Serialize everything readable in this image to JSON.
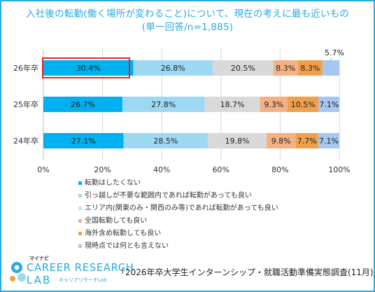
{
  "title_line1": "入社後の転勤(働く場所が変わること)について、現在の考えに最も近いもの",
  "title_line2": "(単一回答/n=1,885)",
  "logo": {
    "brand_small": "マイナビ",
    "brand_line1": "CAREER RESEARCH",
    "brand_line2": "LAB",
    "brand_sub": "キャリアリサーチLab"
  },
  "source": "「2026年卒大学生インターンシップ・就職活動準備実態調査(11月)」",
  "colors": {
    "s1": "#00B0F0",
    "s2": "#9DD9F3",
    "s3": "#D9D9D9",
    "s4": "#F4B183",
    "s5": "#F0A04B",
    "s6": "#A6C8EF",
    "grid": "#D9D9D9",
    "text": "#333333",
    "highlight": "#E4252B"
  },
  "chart_data": {
    "type": "bar",
    "orientation": "horizontal",
    "stacked": true,
    "categories": [
      "26年卒",
      "25年卒",
      "24年卒"
    ],
    "xlim": [
      0,
      100
    ],
    "xticks": [
      "0%",
      "20%",
      "40%",
      "60%",
      "80%",
      "100%"
    ],
    "grid": true,
    "legend_position": "bottom",
    "highlight": {
      "category": "26年卒",
      "series": "転勤はしたくない"
    },
    "series": [
      {
        "name": "転勤はしたくない",
        "values": [
          30.4,
          26.7,
          27.1
        ],
        "labels": [
          "30.4%",
          "26.7%",
          "27.1%"
        ]
      },
      {
        "name": "引っ越しが不要な範囲内であれば転勤があっても良い",
        "values": [
          26.8,
          27.8,
          28.5
        ],
        "labels": [
          "26.8%",
          "27.8%",
          "28.5%"
        ]
      },
      {
        "name": "エリア内(関東のみ・関西のみ等)であれば転勤があっても良い",
        "values": [
          20.5,
          18.7,
          19.8
        ],
        "labels": [
          "20.5%",
          "18.7%",
          "19.8%"
        ]
      },
      {
        "name": "全国転勤しても良い",
        "values": [
          8.3,
          9.3,
          9.8
        ],
        "labels": [
          "8.3%",
          "9.3%",
          "9.8%"
        ]
      },
      {
        "name": "海外含め転勤しても良い",
        "values": [
          8.3,
          10.5,
          7.7
        ],
        "labels": [
          "8.3%",
          "10.5%",
          "7.7%"
        ]
      },
      {
        "name": "現時点では何とも言えない",
        "values": [
          5.7,
          7.1,
          7.1
        ],
        "labels": [
          "5.7%",
          "7.1%",
          "7.1%"
        ]
      }
    ]
  }
}
